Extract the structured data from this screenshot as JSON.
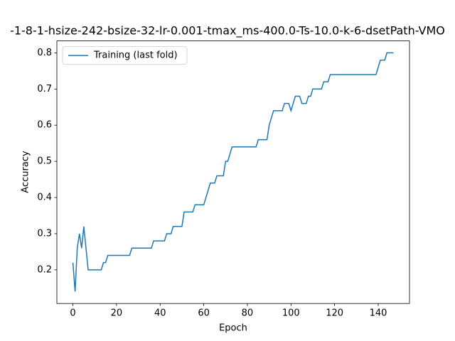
{
  "chart_data": {
    "type": "line",
    "title": "-1-8-1-hsize-242-bsize-32-lr-0.001-tmax_ms-400.0-Ts-10.0-k-6-dsetPath-VMO",
    "xlabel": "Epoch",
    "ylabel": "Accuracy",
    "x": [
      0,
      1,
      2,
      3,
      4,
      5,
      6,
      7,
      8,
      9,
      10,
      11,
      12,
      13,
      14,
      15,
      16,
      17,
      18,
      19,
      20,
      21,
      22,
      23,
      24,
      25,
      26,
      27,
      28,
      29,
      30,
      31,
      32,
      33,
      34,
      35,
      36,
      37,
      38,
      39,
      40,
      41,
      42,
      43,
      44,
      45,
      46,
      47,
      48,
      49,
      50,
      51,
      52,
      53,
      54,
      55,
      56,
      57,
      58,
      59,
      60,
      61,
      62,
      63,
      64,
      65,
      66,
      67,
      68,
      69,
      70,
      71,
      72,
      73,
      74,
      75,
      76,
      77,
      78,
      79,
      80,
      81,
      82,
      83,
      84,
      85,
      86,
      87,
      88,
      89,
      90,
      91,
      92,
      93,
      94,
      95,
      96,
      97,
      98,
      99,
      100,
      101,
      102,
      103,
      104,
      105,
      106,
      107,
      108,
      109,
      110,
      111,
      112,
      113,
      114,
      115,
      116,
      117,
      118,
      119,
      120,
      121,
      122,
      123,
      124,
      125,
      126,
      127,
      128,
      129,
      130,
      131,
      132,
      133,
      134,
      135,
      136,
      137,
      138,
      139,
      140,
      141,
      142,
      143,
      144,
      145,
      146,
      147
    ],
    "series": [
      {
        "name": "Training (last fold)",
        "color": "#1f77b4",
        "values": [
          0.22,
          0.14,
          0.26,
          0.3,
          0.26,
          0.32,
          0.26,
          0.2,
          0.2,
          0.2,
          0.2,
          0.2,
          0.2,
          0.2,
          0.22,
          0.22,
          0.24,
          0.24,
          0.24,
          0.24,
          0.24,
          0.24,
          0.24,
          0.24,
          0.24,
          0.24,
          0.24,
          0.26,
          0.26,
          0.26,
          0.26,
          0.26,
          0.26,
          0.26,
          0.26,
          0.26,
          0.26,
          0.28,
          0.28,
          0.28,
          0.28,
          0.28,
          0.28,
          0.3,
          0.3,
          0.3,
          0.32,
          0.32,
          0.32,
          0.32,
          0.32,
          0.36,
          0.36,
          0.36,
          0.36,
          0.36,
          0.38,
          0.38,
          0.38,
          0.38,
          0.38,
          0.4,
          0.42,
          0.44,
          0.44,
          0.44,
          0.46,
          0.46,
          0.46,
          0.46,
          0.5,
          0.5,
          0.52,
          0.54,
          0.54,
          0.54,
          0.54,
          0.54,
          0.54,
          0.54,
          0.54,
          0.54,
          0.54,
          0.54,
          0.54,
          0.56,
          0.56,
          0.56,
          0.56,
          0.56,
          0.6,
          0.62,
          0.64,
          0.64,
          0.64,
          0.64,
          0.64,
          0.66,
          0.66,
          0.66,
          0.64,
          0.66,
          0.68,
          0.68,
          0.68,
          0.66,
          0.66,
          0.66,
          0.68,
          0.68,
          0.7,
          0.7,
          0.7,
          0.7,
          0.7,
          0.72,
          0.72,
          0.72,
          0.74,
          0.74,
          0.74,
          0.74,
          0.74,
          0.74,
          0.74,
          0.74,
          0.74,
          0.74,
          0.74,
          0.74,
          0.74,
          0.74,
          0.74,
          0.74,
          0.74,
          0.74,
          0.74,
          0.74,
          0.74,
          0.74,
          0.76,
          0.78,
          0.78,
          0.78,
          0.8,
          0.8,
          0.8,
          0.8
        ]
      }
    ],
    "xlim": [
      -7.35,
      154.35
    ],
    "xticks": [
      0,
      20,
      40,
      60,
      80,
      100,
      120,
      140
    ],
    "ylim": [
      0.107,
      0.833
    ],
    "yticks": [
      0.2,
      0.3,
      0.4,
      0.5,
      0.6,
      0.7,
      0.8
    ],
    "legend": "upper left"
  }
}
